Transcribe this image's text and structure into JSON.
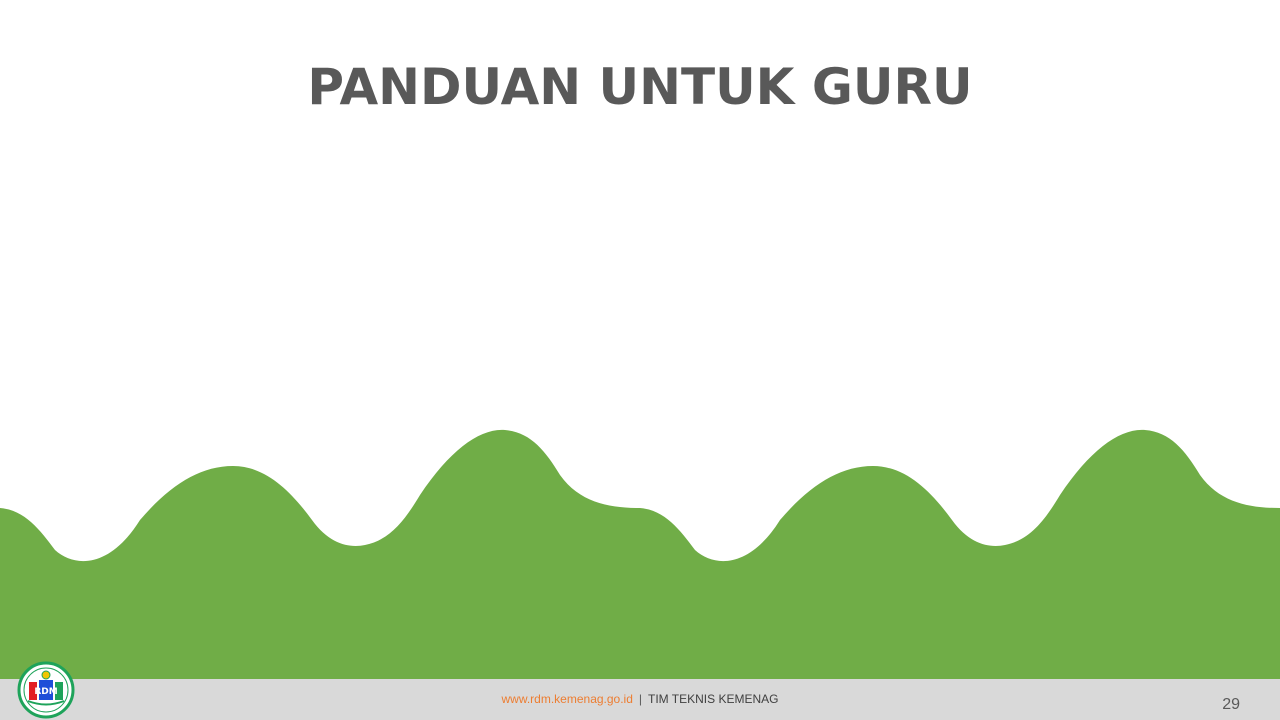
{
  "slide": {
    "title": "PANDUAN UNTUK GURU"
  },
  "footer": {
    "url": "www.rdm.kemenag.go.id",
    "separator": "|",
    "team": "TIM TEKNIS KEMENAG",
    "page_number": "29"
  },
  "logo": {
    "icon": "rdm-logo-icon",
    "text": "RDM"
  },
  "colors": {
    "title": "#595959",
    "wave_green": "#70ad47",
    "footer_bg": "#d9d9d9",
    "url": "#ed7d31",
    "footer_text": "#404040",
    "logo_ring": "#1ea35a"
  }
}
